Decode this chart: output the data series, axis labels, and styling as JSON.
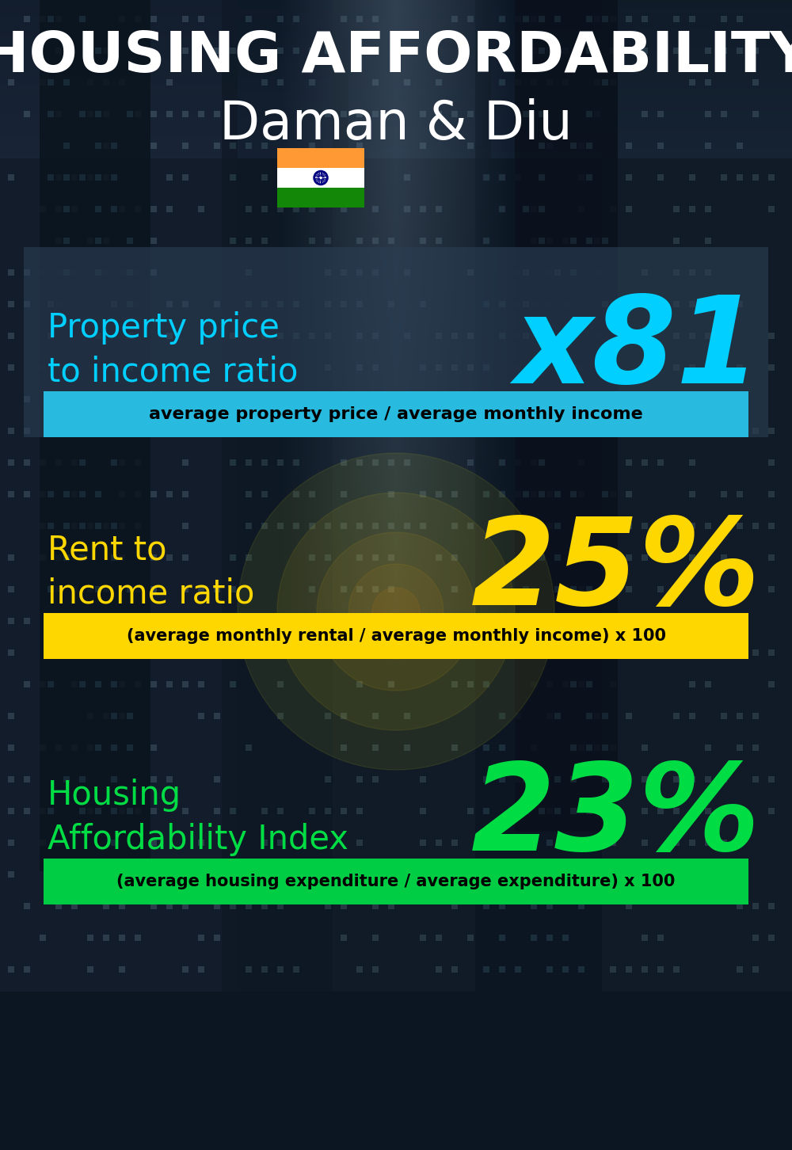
{
  "title_line1": "HOUSING AFFORDABILITY",
  "title_line2": "Daman & Diu",
  "section1_label": "Property price\nto income ratio",
  "section1_value": "x81",
  "section1_sublabel": "average property price / average monthly income",
  "section1_label_color": "#00CFFF",
  "section1_value_color": "#00CFFF",
  "section1_bg_color": "#29BADF",
  "section2_label": "Rent to\nincome ratio",
  "section2_value": "25%",
  "section2_sublabel": "(average monthly rental / average monthly income) x 100",
  "section2_label_color": "#FFD700",
  "section2_value_color": "#FFD700",
  "section2_bg_color": "#FFD700",
  "section3_label": "Housing\nAffordability Index",
  "section3_value": "23%",
  "section3_sublabel": "(average housing expenditure / average expenditure) x 100",
  "section3_label_color": "#00DD44",
  "section3_value_color": "#00DD44",
  "section3_bg_color": "#00CC44",
  "bg_color": "#0a1520",
  "title_color": "#FFFFFF",
  "sublabel_text_color": "#000000",
  "section1_overlay": "#2a3d52",
  "section1_overlay_alpha": 0.65,
  "flag_saffron": "#FF9933",
  "flag_white": "#FFFFFF",
  "flag_green": "#138808",
  "flag_navy": "#000080"
}
